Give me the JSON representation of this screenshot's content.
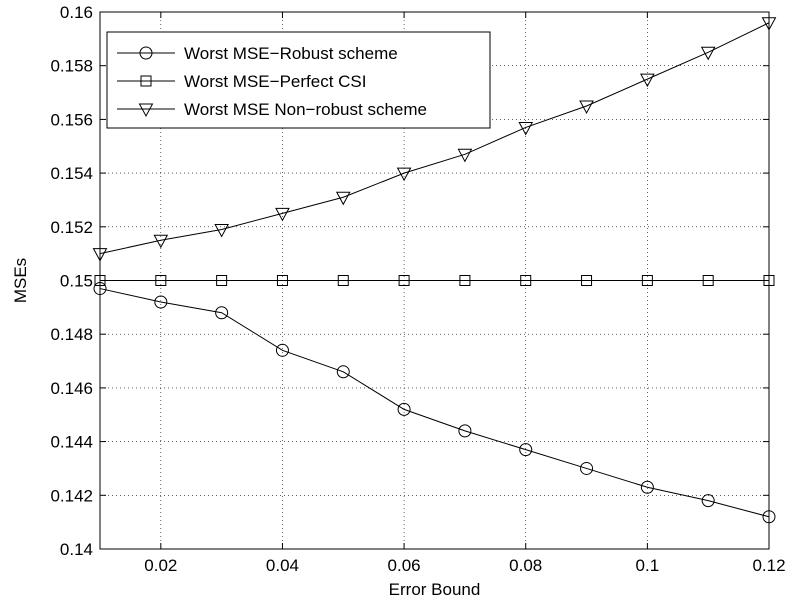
{
  "chart_data": {
    "type": "line",
    "xlabel": "Error Bound",
    "ylabel": "MSEs",
    "xlim": [
      0.01,
      0.12
    ],
    "ylim": [
      0.14,
      0.16
    ],
    "grid": true,
    "legend_position": "top-left",
    "x_ticks": [
      "0.02",
      "0.04",
      "0.06",
      "0.08",
      "0.1",
      "0.12"
    ],
    "x_tick_values": [
      0.02,
      0.04,
      0.06,
      0.08,
      0.1,
      0.12
    ],
    "y_ticks": [
      "0.14",
      "0.142",
      "0.144",
      "0.146",
      "0.148",
      "0.15",
      "0.152",
      "0.154",
      "0.156",
      "0.158",
      "0.16"
    ],
    "y_tick_values": [
      0.14,
      0.142,
      0.144,
      0.146,
      0.148,
      0.15,
      0.152,
      0.154,
      0.156,
      0.158,
      0.16
    ],
    "x": [
      0.01,
      0.02,
      0.03,
      0.04,
      0.05,
      0.06,
      0.07,
      0.08,
      0.09,
      0.1,
      0.11,
      0.12
    ],
    "series": [
      {
        "name": "Worst MSE−Robust scheme",
        "marker": "circle",
        "color": "#000000",
        "values": [
          0.1497,
          0.1492,
          0.1488,
          0.1474,
          0.1466,
          0.1452,
          0.1444,
          0.1437,
          0.143,
          0.1423,
          0.1418,
          0.1412
        ]
      },
      {
        "name": "Worst MSE−Perfect CSI",
        "marker": "square",
        "color": "#000000",
        "values": [
          0.15,
          0.15,
          0.15,
          0.15,
          0.15,
          0.15,
          0.15,
          0.15,
          0.15,
          0.15,
          0.15,
          0.15
        ]
      },
      {
        "name": "Worst MSE Non−robust scheme",
        "marker": "triangle-down",
        "color": "#000000",
        "values": [
          0.151,
          0.1515,
          0.1519,
          0.1525,
          0.1531,
          0.154,
          0.1547,
          0.1557,
          0.1565,
          0.1575,
          0.1585,
          0.1596
        ]
      }
    ]
  }
}
